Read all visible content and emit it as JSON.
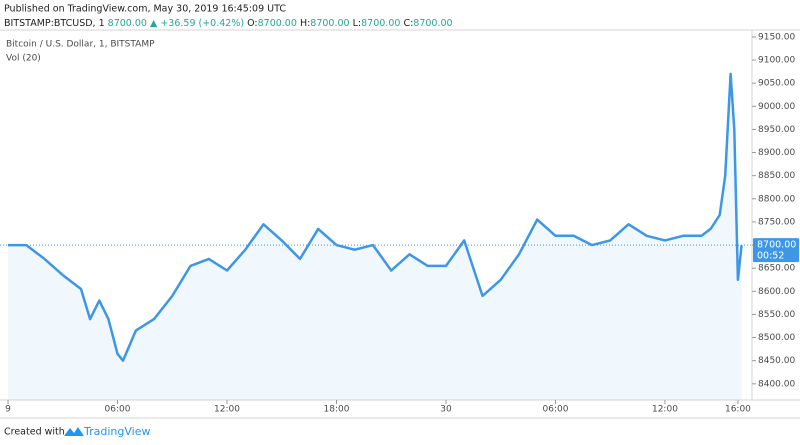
{
  "header": {
    "published": "Published on TradingView.com, May 30, 2019 16:45:09 UTC",
    "symbol": "BITSTAMP:BTCUSD, 1",
    "last": "8700.00",
    "arrow": "▲",
    "change": "+36.59 (+0.42%)",
    "o_label": "O:",
    "o": "8700.00",
    "h_label": "H:",
    "h": "8700.00",
    "l_label": "L:",
    "l": "8700.00",
    "c_label": "C:",
    "c": "8700.00"
  },
  "footer": {
    "created": "Created with",
    "brand": "TradingView"
  },
  "chart_data": {
    "type": "line",
    "title": "Bitcoin / U.S. Dollar, 1, BITSTAMP",
    "subtitle": "Vol (20)",
    "x": [
      0,
      1,
      2,
      3,
      4,
      4.5,
      5,
      5.5,
      6,
      6.3,
      7,
      8,
      9,
      10,
      11,
      12,
      13,
      14,
      15,
      16,
      17,
      18,
      19,
      20,
      21,
      22,
      23,
      24,
      25,
      26,
      27,
      28,
      29,
      30,
      31,
      32,
      33,
      34,
      35,
      36,
      37,
      38,
      38.5,
      39,
      39.3,
      39.6,
      39.8,
      40,
      40.2
    ],
    "series": [
      {
        "name": "BTCUSD",
        "color": "#3d97e6",
        "values": [
          8700,
          8700,
          8670,
          8635,
          8605,
          8540,
          8580,
          8540,
          8465,
          8450,
          8515,
          8540,
          8590,
          8655,
          8670,
          8645,
          8690,
          8745,
          8710,
          8670,
          8735,
          8700,
          8690,
          8700,
          8645,
          8680,
          8655,
          8655,
          8710,
          8590,
          8625,
          8680,
          8755,
          8720,
          8720,
          8700,
          8710,
          8745,
          8720,
          8710,
          8720,
          8720,
          8735,
          8765,
          8850,
          9070,
          8950,
          8625,
          8700
        ]
      }
    ],
    "xlim": [
      -0.44,
      40.77
    ],
    "xticks": [
      {
        "value": 0,
        "label": "9"
      },
      {
        "value": 6,
        "label": "06:00"
      },
      {
        "value": 12,
        "label": "12:00"
      },
      {
        "value": 18,
        "label": "18:00"
      },
      {
        "value": 24,
        "label": "30"
      },
      {
        "value": 30,
        "label": "06:00"
      },
      {
        "value": 36,
        "label": "12:00"
      },
      {
        "value": 40,
        "label": "16:00"
      }
    ],
    "ylim": [
      8365,
      9165
    ],
    "yticks": [
      {
        "value": 8400,
        "label": "8400.00"
      },
      {
        "value": 8450,
        "label": "8450.00"
      },
      {
        "value": 8500,
        "label": "8500.00"
      },
      {
        "value": 8550,
        "label": "8550.00"
      },
      {
        "value": 8600,
        "label": "8600.00"
      },
      {
        "value": 8650,
        "label": "8650.00"
      },
      {
        "value": 8700,
        "label": "8700.00"
      },
      {
        "value": 8750,
        "label": "8750.00"
      },
      {
        "value": 8800,
        "label": "8800.00"
      },
      {
        "value": 8850,
        "label": "8850.00"
      },
      {
        "value": 8900,
        "label": "8900.00"
      },
      {
        "value": 8950,
        "label": "8950.00"
      },
      {
        "value": 9000,
        "label": "9000.00"
      },
      {
        "value": 9050,
        "label": "9050.00"
      },
      {
        "value": 9100,
        "label": "9100.00"
      },
      {
        "value": 9150,
        "label": "9150.00"
      }
    ],
    "price_label": {
      "value": 8700,
      "label": "8700.00"
    },
    "countdown": "00:52",
    "grid": false
  }
}
